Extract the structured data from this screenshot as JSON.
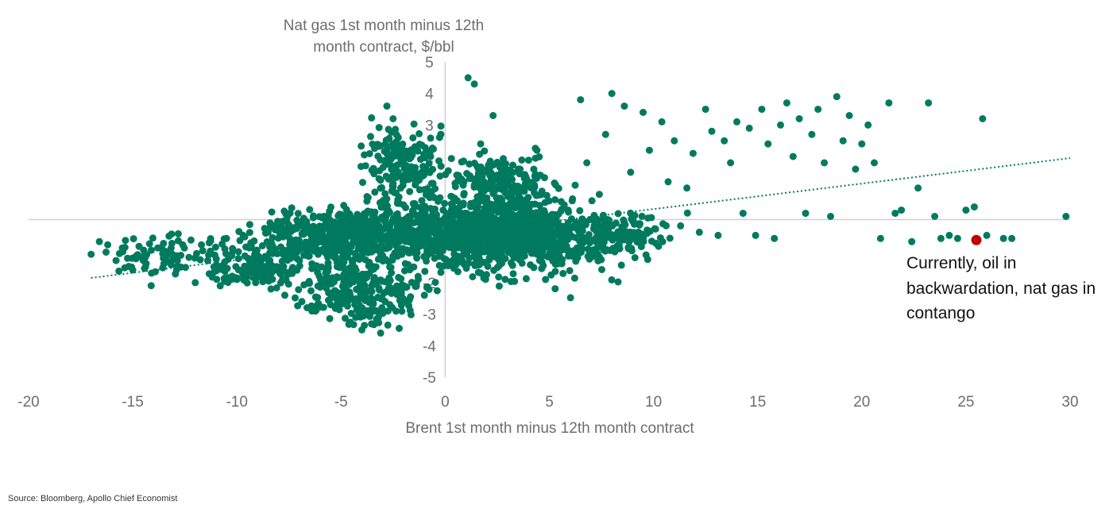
{
  "source": "Source: Bloomberg, Apollo Chief Economist",
  "colors": {
    "points": "#007A5E",
    "current": "#C00000",
    "axis": "#d0d0d0",
    "text": "#6d6d6d"
  },
  "chart_data": {
    "type": "scatter",
    "title": "",
    "ylabel_lines": [
      "Nat gas 1st month minus 12th",
      "month contract, $/bbl"
    ],
    "xlabel": "Brent 1st month minus 12th month contract",
    "xlim": [
      -20,
      30
    ],
    "ylim": [
      -5,
      5
    ],
    "xticks": [
      -20,
      -15,
      -10,
      -5,
      0,
      5,
      10,
      15,
      20,
      25,
      30
    ],
    "yticks": [
      -5,
      -4,
      -3,
      -2,
      -1,
      0,
      1,
      2,
      3,
      4,
      5
    ],
    "xtick_labels": [
      "-20",
      "-15",
      "-10",
      "-5",
      "0",
      "5",
      "10",
      "15",
      "20",
      "25",
      "30"
    ],
    "ytick_labels": [
      "-5",
      "-4",
      "-3",
      "-2",
      "-1",
      "0",
      "1",
      "2",
      "3",
      "4",
      "5"
    ],
    "trendline": {
      "style": "dotted",
      "x0": -17,
      "y0": -1.85,
      "x1": 30,
      "y1": 1.95
    },
    "current_point": {
      "x": 25.5,
      "y": -0.65
    },
    "annotation_lines": [
      "Currently, oil in",
      "backwardation, nat gas in",
      "contango"
    ],
    "points": [
      [
        -17,
        -1.1
      ],
      [
        -16.6,
        -0.7
      ],
      [
        -16.2,
        -0.8
      ],
      [
        -15.8,
        -1.3
      ],
      [
        -15.5,
        -0.9
      ],
      [
        -15,
        -1.6
      ],
      [
        -14.7,
        -0.85
      ],
      [
        -14.4,
        -1.2
      ],
      [
        -14.1,
        -1.7
      ],
      [
        -13.8,
        -0.9
      ],
      [
        -13.5,
        -1.4
      ],
      [
        -13.2,
        -1.0
      ],
      [
        -12.9,
        -1.6
      ],
      [
        -12.6,
        -0.8
      ],
      [
        -12.3,
        -1.2
      ],
      [
        -12,
        -2.0
      ],
      [
        -11.7,
        -0.8
      ],
      [
        -11.4,
        -1.3
      ],
      [
        -11.1,
        -1.5
      ],
      [
        -10.8,
        -2.1
      ],
      [
        -10.5,
        -0.6
      ],
      [
        -10.2,
        -1.0
      ],
      [
        -10,
        -1.9
      ],
      [
        -9.7,
        -0.5
      ],
      [
        -9.4,
        -0.9
      ],
      [
        -9.1,
        -2.0
      ],
      [
        -8.8,
        -1.8
      ],
      [
        -8.5,
        -0.4
      ],
      [
        -8.2,
        -1.0
      ],
      [
        -7.9,
        -1.6
      ],
      [
        -7.6,
        -0.3
      ],
      [
        -7.3,
        -0.8
      ],
      [
        -7,
        -1.3
      ],
      [
        -6.7,
        -0.2
      ],
      [
        -6.4,
        -0.6
      ],
      [
        -6.1,
        -1.1
      ],
      [
        -5.8,
        -1.9
      ],
      [
        -5.5,
        -2.7
      ],
      [
        -5.2,
        -0.3
      ],
      [
        -4.9,
        -1.5
      ],
      [
        -4.6,
        -2.3
      ],
      [
        -4.3,
        -3.1
      ],
      [
        -4,
        -3.5
      ],
      [
        -3.7,
        0.7
      ],
      [
        -3.4,
        -2.9
      ],
      [
        -3.1,
        -3.6
      ],
      [
        -2.8,
        3.6
      ],
      [
        -2.5,
        3.2
      ],
      [
        -2.2,
        2.2
      ],
      [
        -1.9,
        -2.6
      ],
      [
        -1.6,
        1.4
      ],
      [
        -1.3,
        -1.8
      ],
      [
        -1,
        -2.4
      ],
      [
        -0.7,
        2.0
      ],
      [
        -0.4,
        -1.0
      ],
      [
        -0.1,
        0.3
      ],
      [
        0.3,
        0.5
      ],
      [
        0.6,
        -0.4
      ],
      [
        0.9,
        1.2
      ],
      [
        1.1,
        4.5
      ],
      [
        1.4,
        4.3
      ],
      [
        1.7,
        2.4
      ],
      [
        2.0,
        0.6
      ],
      [
        2.3,
        3.3
      ],
      [
        2.6,
        -0.8
      ],
      [
        2.9,
        1.6
      ],
      [
        3.2,
        0.4
      ],
      [
        3.5,
        -1.2
      ],
      [
        3.8,
        0.9
      ],
      [
        4.1,
        -0.3
      ],
      [
        4.4,
        2.2
      ],
      [
        4.7,
        0.1
      ],
      [
        5.0,
        -0.6
      ],
      [
        5.3,
        1.1
      ],
      [
        5.6,
        -1.4
      ],
      [
        5.9,
        0.3
      ],
      [
        6.2,
        -0.2
      ],
      [
        6.5,
        3.8
      ],
      [
        6.8,
        1.8
      ],
      [
        7.1,
        -1.0
      ],
      [
        7.4,
        0.8
      ],
      [
        7.7,
        2.7
      ],
      [
        8.0,
        4.0
      ],
      [
        8.3,
        -0.4
      ],
      [
        8.6,
        3.6
      ],
      [
        8.9,
        1.5
      ],
      [
        9.2,
        -0.5
      ],
      [
        9.5,
        3.4
      ],
      [
        9.8,
        2.2
      ],
      [
        10.1,
        -0.3
      ],
      [
        10.4,
        3.1
      ],
      [
        10.7,
        1.2
      ],
      [
        11.0,
        2.5
      ],
      [
        11.3,
        -0.2
      ],
      [
        11.6,
        1.0
      ],
      [
        11.9,
        2.1
      ],
      [
        12.2,
        -0.4
      ],
      [
        12.5,
        3.5
      ],
      [
        12.8,
        2.8
      ],
      [
        13.1,
        -0.5
      ],
      [
        13.4,
        2.5
      ],
      [
        13.7,
        1.8
      ],
      [
        14.0,
        3.1
      ],
      [
        14.3,
        0.2
      ],
      [
        14.6,
        2.9
      ],
      [
        14.9,
        -0.5
      ],
      [
        15.2,
        3.5
      ],
      [
        15.5,
        2.4
      ],
      [
        15.8,
        -0.6
      ],
      [
        16.1,
        3.0
      ],
      [
        16.4,
        3.7
      ],
      [
        16.7,
        2.0
      ],
      [
        17.0,
        3.2
      ],
      [
        17.3,
        0.2
      ],
      [
        17.6,
        2.7
      ],
      [
        17.9,
        3.5
      ],
      [
        18.2,
        1.8
      ],
      [
        18.5,
        0.1
      ],
      [
        18.8,
        3.9
      ],
      [
        19.1,
        2.5
      ],
      [
        19.4,
        3.3
      ],
      [
        19.7,
        1.6
      ],
      [
        20.0,
        2.4
      ],
      [
        20.3,
        3.0
      ],
      [
        20.6,
        1.8
      ],
      [
        20.9,
        -0.6
      ],
      [
        21.3,
        3.7
      ],
      [
        21.6,
        0.2
      ],
      [
        21.9,
        0.3
      ],
      [
        22.4,
        -0.7
      ],
      [
        22.7,
        1.0
      ],
      [
        23.2,
        3.7
      ],
      [
        23.5,
        0.1
      ],
      [
        23.8,
        -0.6
      ],
      [
        24.2,
        -0.5
      ],
      [
        24.6,
        -0.6
      ],
      [
        25.0,
        0.3
      ],
      [
        25.4,
        0.4
      ],
      [
        25.8,
        3.2
      ],
      [
        26.0,
        -0.5
      ],
      [
        26.8,
        -0.6
      ],
      [
        27.2,
        -0.6
      ],
      [
        29.8,
        0.1
      ]
    ]
  }
}
